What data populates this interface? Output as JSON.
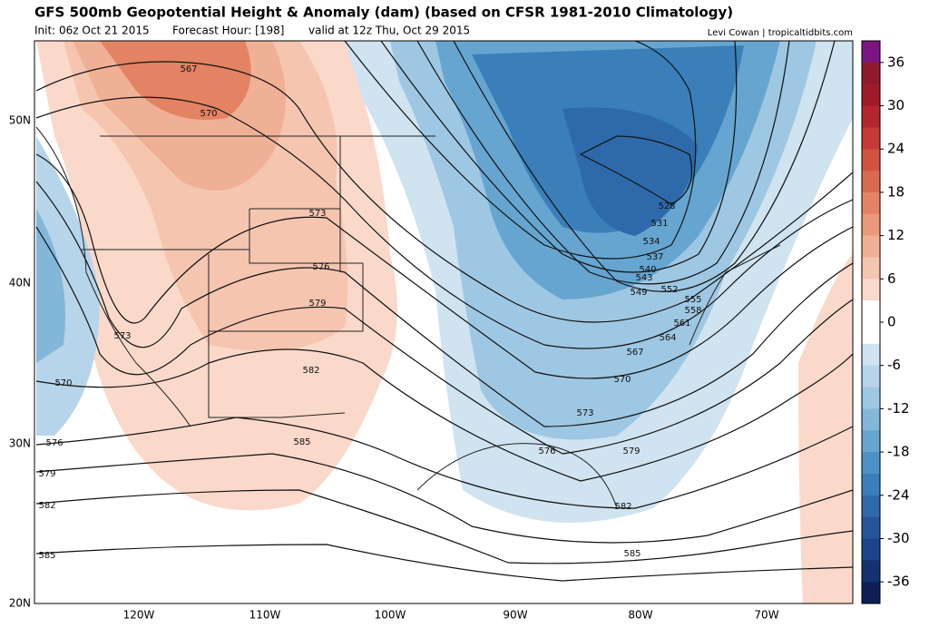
{
  "header": {
    "title": "GFS 500mb Geopotential Height & Anomaly (dam) (based on CFSR 1981-2010 Climatology)",
    "init": "Init: 06z Oct 21 2015",
    "forecast_hour": "Forecast Hour: [198]",
    "valid": "valid at 12z Thu, Oct 29 2015",
    "credit": "Levi Cowan | tropicaltidbits.com"
  },
  "map": {
    "latitude_labels": [
      "50N",
      "40N",
      "30N",
      "20N"
    ],
    "longitude_labels": [
      "120W",
      "110W",
      "100W",
      "90W",
      "80W",
      "70W"
    ],
    "contour_labels": [
      567,
      570,
      573,
      576,
      579,
      582,
      585,
      573,
      570,
      576,
      579,
      582,
      585,
      528,
      531,
      534,
      537,
      540,
      543,
      549,
      552,
      555,
      558,
      561,
      564,
      567,
      570,
      573,
      576,
      579,
      582,
      585
    ]
  },
  "colorbar": {
    "labels": [
      36,
      30,
      24,
      18,
      12,
      6,
      0,
      -6,
      -12,
      -18,
      -24,
      -30,
      -36
    ],
    "colors": [
      "#7b1582",
      "#8e1a2e",
      "#a01b2a",
      "#b52530",
      "#c53a35",
      "#d0523f",
      "#da6a4f",
      "#e38363",
      "#ea9a7a",
      "#f0b095",
      "#f5c5b0",
      "#fad9ca",
      "#ffffff",
      "#ffffff",
      "#cfe3f0",
      "#b7d5ea",
      "#9ec7e3",
      "#83b7da",
      "#66a5d0",
      "#4d92c5",
      "#3a7fb9",
      "#2e6aaa",
      "#25569a",
      "#1c4488",
      "#143270",
      "#0e1f55"
    ]
  }
}
